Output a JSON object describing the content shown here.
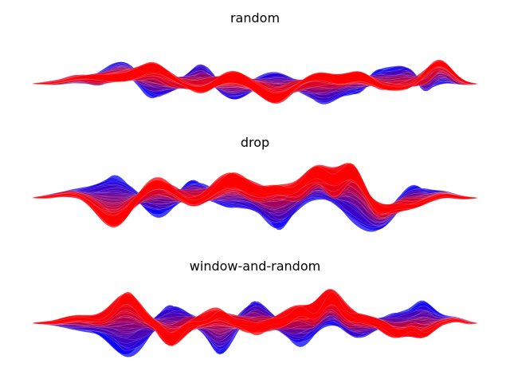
{
  "colors": {
    "start": "#0000ff",
    "end": "#ff0000",
    "background": "#ffffff"
  },
  "chart_data": [
    {
      "type": "area",
      "title": "random",
      "series_count": 40,
      "xlim": [
        0,
        100
      ],
      "ylim": [
        -2,
        2
      ],
      "axes_visible": false,
      "grid": false,
      "legend": "none"
    },
    {
      "type": "area",
      "title": "drop",
      "series_count": 40,
      "xlim": [
        0,
        100
      ],
      "ylim": [
        -2,
        2
      ],
      "axes_visible": false,
      "grid": false,
      "legend": "none"
    },
    {
      "type": "area",
      "title": "window-and-random",
      "series_count": 40,
      "xlim": [
        0,
        100
      ],
      "ylim": [
        -2,
        2
      ],
      "axes_visible": false,
      "grid": false,
      "legend": "none"
    }
  ]
}
